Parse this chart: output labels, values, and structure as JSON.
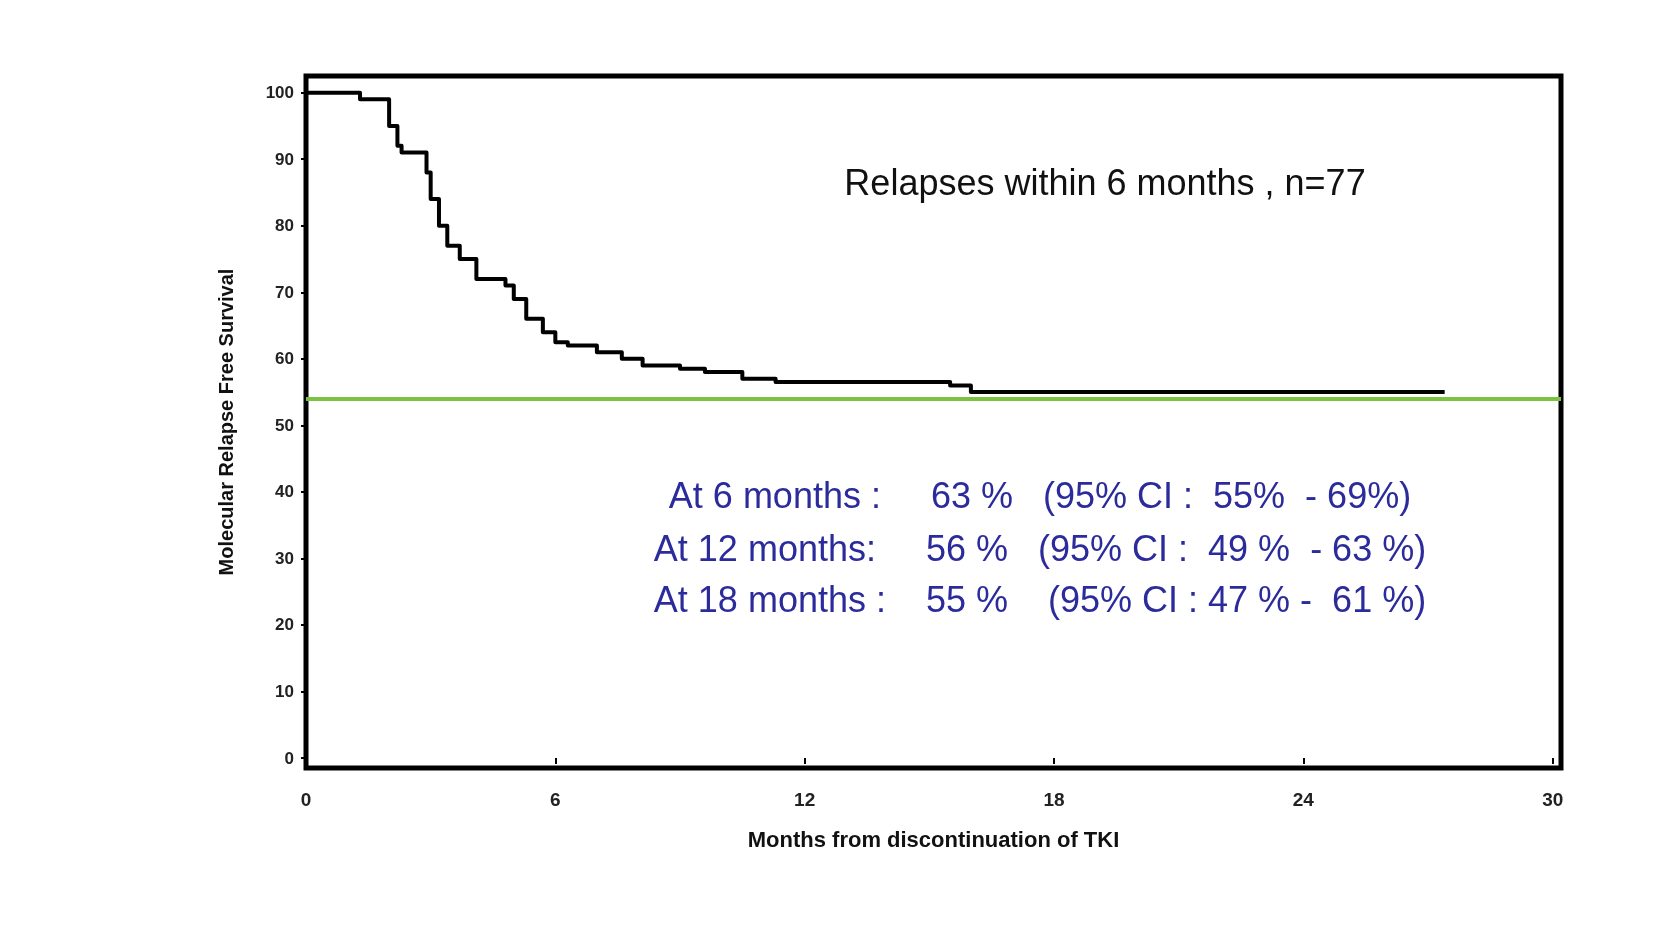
{
  "chart_data": {
    "type": "step",
    "xlabel": "Months from discontinuation of TKI",
    "ylabel": "Molecular Relapse Free Survival",
    "x": [
      0,
      1.3,
      2.0,
      2.2,
      2.3,
      2.9,
      3.0,
      3.2,
      3.4,
      3.7,
      4.1,
      4.8,
      5.0,
      5.3,
      5.7,
      6.0,
      6.3,
      7.0,
      7.6,
      8.1,
      9.0,
      9.6,
      10.5,
      11.3,
      15.5,
      16.0,
      27.4
    ],
    "series": [
      {
        "color": "#000000",
        "values": [
          100,
          99,
          95,
          92,
          91,
          88,
          84,
          80,
          77,
          75,
          72,
          71,
          69,
          66,
          64,
          62.5,
          62,
          61,
          60,
          59,
          58.5,
          58,
          57,
          56.5,
          56,
          55,
          55
        ]
      }
    ],
    "xlim": [
      0,
      30.2
    ],
    "xticks": [
      0,
      6,
      12,
      18,
      24,
      30
    ],
    "ylim": [
      -1.5,
      102.5
    ],
    "yticks": [
      0,
      10,
      20,
      30,
      40,
      50,
      60,
      70,
      80,
      90,
      100
    ],
    "ref_lines": [
      {
        "axis": "y",
        "value": 54,
        "color": "#7cc242"
      }
    ],
    "annotations": [
      "Relapses within 6 months , n=77",
      "At 6 months :     63 %   (95% CI :  55%  - 69%)",
      "At 12 months:     56 %   (95% CI :  49 %  - 63 %)",
      "At 18 months :    55 %    (95% CI : 47 % -  61 %)"
    ]
  }
}
